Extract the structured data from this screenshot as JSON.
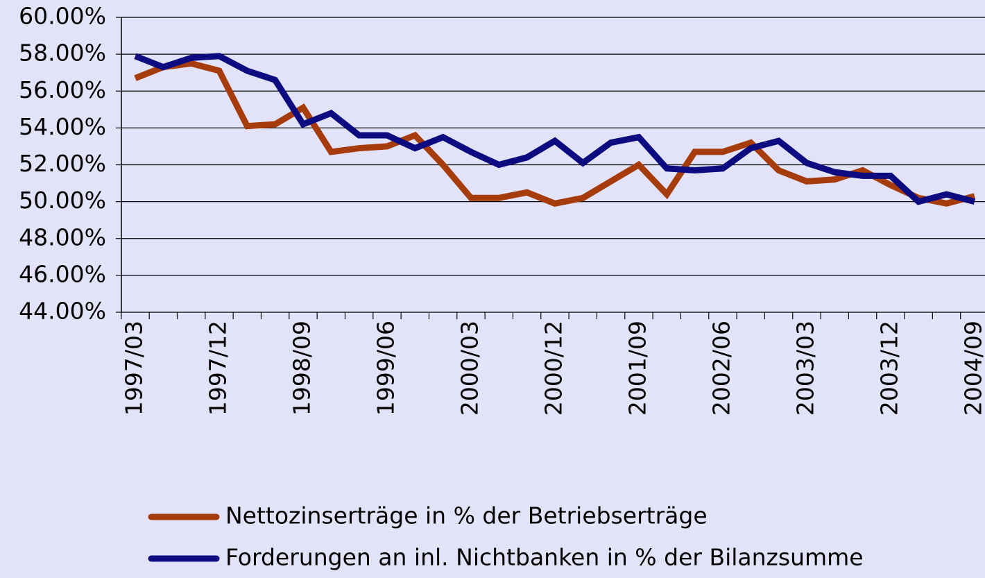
{
  "chart_data": {
    "type": "line",
    "categories": [
      "1997/03",
      null,
      null,
      "1997/12",
      null,
      null,
      "1998/09",
      null,
      null,
      "1999/06",
      null,
      null,
      "2000/03",
      null,
      null,
      "2000/12",
      null,
      null,
      "2001/09",
      null,
      null,
      "2002/06",
      null,
      null,
      "2003/03",
      null,
      null,
      "2003/12",
      null,
      null,
      "2004/09"
    ],
    "series": [
      {
        "name": "Nettozinserträge in % der Betriebserträge",
        "color": "#a63c0c",
        "values": [
          56.7,
          57.3,
          57.5,
          57.1,
          54.1,
          54.2,
          55.1,
          52.7,
          52.9,
          53.0,
          53.6,
          52.0,
          50.2,
          50.2,
          50.5,
          49.9,
          50.2,
          51.1,
          52.0,
          50.4,
          52.7,
          52.7,
          53.2,
          51.7,
          51.1,
          51.2,
          51.7,
          50.9,
          50.2,
          49.9,
          50.3
        ]
      },
      {
        "name": "Forderungen an inl. Nichtbanken in % der Bilanzsumme",
        "color": "#0c0c80",
        "values": [
          57.9,
          57.3,
          57.8,
          57.9,
          57.1,
          56.6,
          54.2,
          54.8,
          53.6,
          53.6,
          52.9,
          53.5,
          52.7,
          52.0,
          52.4,
          53.3,
          52.1,
          53.2,
          53.5,
          51.8,
          51.7,
          51.8,
          52.9,
          53.3,
          52.1,
          51.6,
          51.4,
          51.4,
          50.0,
          50.4,
          50.0
        ]
      }
    ],
    "ylim": [
      44,
      60
    ],
    "yticks": [
      {
        "value": 44,
        "label": "44.00%"
      },
      {
        "value": 46,
        "label": "46.00%"
      },
      {
        "value": 48,
        "label": "48.00%"
      },
      {
        "value": 50,
        "label": "50.00%"
      },
      {
        "value": 52,
        "label": "52.00%"
      },
      {
        "value": 54,
        "label": "54.00%"
      },
      {
        "value": 56,
        "label": "56.00%"
      },
      {
        "value": 58,
        "label": "58.00%"
      },
      {
        "value": 60,
        "label": "60.00%"
      }
    ],
    "grid": true,
    "legend": "bottom"
  }
}
